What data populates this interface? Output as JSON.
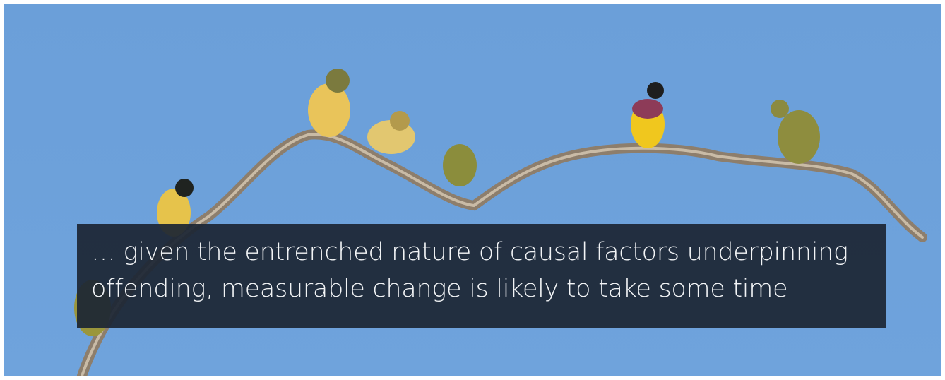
{
  "quote": {
    "lines": [
      "… given the entrenched nature of causal factors underpinning",
      "offending, measurable change is likely to take some time"
    ]
  }
}
